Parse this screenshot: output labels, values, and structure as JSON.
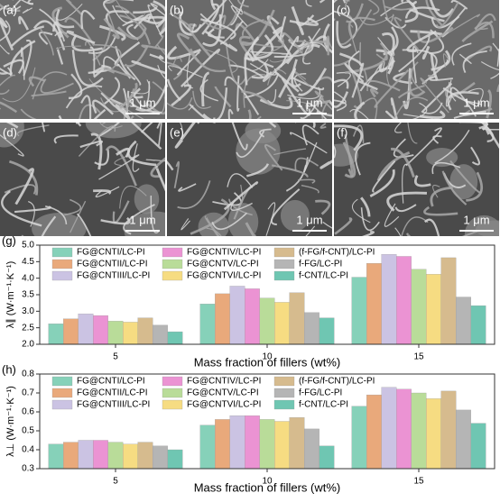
{
  "images": [
    {
      "label": "(a)",
      "scale_bar": "1 μm"
    },
    {
      "label": "(b)",
      "scale_bar": "1 μm"
    },
    {
      "label": "(c)",
      "scale_bar": "1 μm"
    },
    {
      "label": "(d)",
      "scale_bar": "1 μm"
    },
    {
      "label": "(e)",
      "scale_bar": "1 μm"
    },
    {
      "label": "(f)",
      "scale_bar": "1 μm"
    }
  ],
  "chart_data": [
    {
      "type": "bar",
      "panel_label": "(g)",
      "y_label": "λ∥ (W·m⁻¹·K⁻¹)",
      "x_label": "Mass fraction of fillers (wt%)",
      "categories": [
        "5",
        "10",
        "15"
      ],
      "ylim": [
        2.0,
        5.0
      ],
      "yticks": [
        {
          "value": 2.0,
          "label": "2.0"
        },
        2.5,
        {
          "value": 3.0,
          "label": "3.0"
        },
        3.5,
        {
          "value": 4.0,
          "label": "4.0"
        },
        4.5,
        {
          "value": 5.0,
          "label": "5.0"
        }
      ],
      "series": [
        {
          "name": "FG@CNTI/LC-PI",
          "color": "#86d1b9",
          "values": [
            2.62,
            3.22,
            4.03
          ]
        },
        {
          "name": "FG@CNTII/LC-PI",
          "color": "#e9a97b",
          "values": [
            2.77,
            3.53,
            4.45
          ]
        },
        {
          "name": "FG@CNTIII/LC-PI",
          "color": "#cbc3e3",
          "values": [
            2.92,
            3.76,
            4.72
          ]
        },
        {
          "name": "FG@CNTIV/LC-PI",
          "color": "#eb93d3",
          "values": [
            2.87,
            3.68,
            4.66
          ]
        },
        {
          "name": "FG@CNTV/LC-PI",
          "color": "#b9dc99",
          "values": [
            2.7,
            3.4,
            4.27
          ]
        },
        {
          "name": "FG@CNTVI/LC-PI",
          "color": "#f6dc82",
          "values": [
            2.67,
            3.27,
            4.12
          ]
        },
        {
          "name": "(f-FG/f-CNT)/LC-PI",
          "color": "#d6bb8e",
          "values": [
            2.8,
            3.56,
            4.62
          ]
        },
        {
          "name": "f-FG/LC-PI",
          "color": "#b5b5b5",
          "values": [
            2.58,
            2.96,
            3.43
          ]
        },
        {
          "name": "f-CNT/LC-PI",
          "color": "#6fc6b2",
          "values": [
            2.38,
            2.8,
            3.17
          ]
        }
      ]
    },
    {
      "type": "bar",
      "panel_label": "(h)",
      "y_label": "λ⊥ (W·m⁻¹·K⁻¹)",
      "x_label": "Mass fraction of fillers (wt%)",
      "categories": [
        "5",
        "10",
        "15"
      ],
      "ylim": [
        0.3,
        0.8
      ],
      "yticks": [
        0.3,
        0.4,
        0.5,
        0.6,
        0.7,
        0.8
      ],
      "series": [
        {
          "name": "FG@CNTI/LC-PI",
          "color": "#86d1b9",
          "values": [
            0.43,
            0.53,
            0.63
          ]
        },
        {
          "name": "FG@CNTII/LC-PI",
          "color": "#e9a97b",
          "values": [
            0.44,
            0.56,
            0.69
          ]
        },
        {
          "name": "FG@CNTIII/LC-PI",
          "color": "#cbc3e3",
          "values": [
            0.45,
            0.58,
            0.73
          ]
        },
        {
          "name": "FG@CNTIV/LC-PI",
          "color": "#eb93d3",
          "values": [
            0.45,
            0.58,
            0.72
          ]
        },
        {
          "name": "FG@CNTV/LC-PI",
          "color": "#b9dc99",
          "values": [
            0.44,
            0.56,
            0.7
          ]
        },
        {
          "name": "FG@CNTVI/LC-PI",
          "color": "#f6dc82",
          "values": [
            0.43,
            0.55,
            0.67
          ]
        },
        {
          "name": "(f-FG/f-CNT)/LC-PI",
          "color": "#d6bb8e",
          "values": [
            0.44,
            0.57,
            0.71
          ]
        },
        {
          "name": "f-FG/LC-PI",
          "color": "#b5b5b5",
          "values": [
            0.42,
            0.51,
            0.61
          ]
        },
        {
          "name": "f-CNT/LC-PI",
          "color": "#6fc6b2",
          "values": [
            0.4,
            0.42,
            0.54
          ]
        }
      ]
    }
  ]
}
